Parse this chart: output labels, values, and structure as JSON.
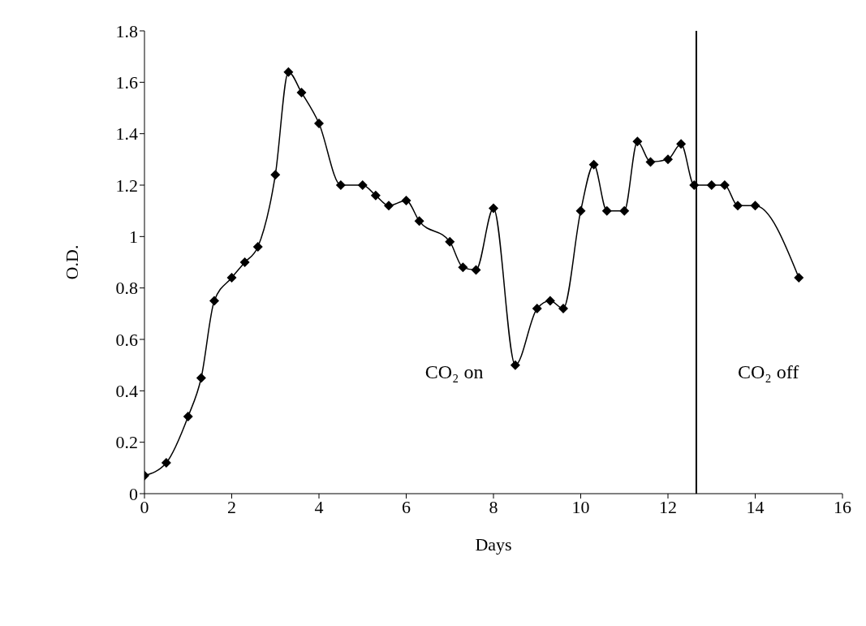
{
  "chart_data": {
    "type": "line",
    "xlabel": "Days",
    "ylabel": "O.D.",
    "x": [
      0,
      0.5,
      1,
      1.3,
      1.6,
      2,
      2.3,
      2.6,
      3,
      3.3,
      3.6,
      4,
      4.5,
      5,
      5.3,
      5.6,
      6,
      6.3,
      7,
      7.3,
      7.6,
      8,
      8.5,
      9,
      9.3,
      9.6,
      10,
      10.3,
      10.6,
      11,
      11.3,
      11.6,
      12,
      12.3,
      12.6,
      13,
      13.3,
      13.6,
      14,
      15
    ],
    "series": [
      {
        "color": "#000000",
        "values": [
          0.07,
          0.12,
          0.3,
          0.45,
          0.75,
          0.84,
          0.9,
          0.96,
          1.24,
          1.64,
          1.56,
          1.44,
          1.2,
          1.2,
          1.16,
          1.12,
          1.14,
          1.06,
          0.98,
          0.88,
          0.87,
          1.11,
          0.5,
          0.72,
          0.75,
          0.72,
          1.1,
          1.28,
          1.1,
          1.1,
          1.37,
          1.29,
          1.3,
          1.36,
          1.2,
          1.2,
          1.2,
          1.12,
          1.12,
          0.84
        ]
      }
    ],
    "xlim": [
      0,
      16
    ],
    "xticks": [
      0,
      2,
      4,
      6,
      8,
      10,
      12,
      14,
      16
    ],
    "ylim": [
      0,
      1.8
    ],
    "yticks": [
      0,
      0.2,
      0.4,
      0.6,
      0.8,
      1,
      1.2,
      1.4,
      1.6,
      1.8
    ],
    "ref_lines": [
      {
        "axis": "x",
        "value": 12.65,
        "color": "#000000"
      }
    ],
    "annotations": [
      "CO₂ on",
      "CO₂ off"
    ],
    "marker": "diamond",
    "line_style": "solid",
    "grid": false,
    "legend": false
  }
}
